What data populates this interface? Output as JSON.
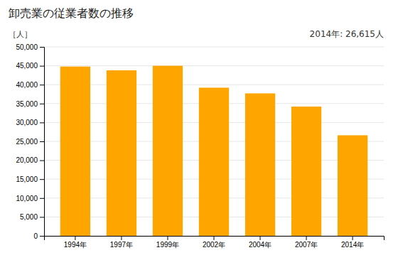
{
  "chart_data": {
    "type": "bar",
    "title": "卸売業の従業者数の推移",
    "ylabel": "［人］",
    "annotation": "2014年: 26,615人",
    "categories": [
      "1994年",
      "1997年",
      "1999年",
      "2002年",
      "2004年",
      "2007年",
      "2014年"
    ],
    "values": [
      44800,
      43800,
      45000,
      39200,
      37700,
      34200,
      26615
    ],
    "color": "#FFA500",
    "ylim": [
      0,
      50000
    ],
    "yticks": [
      0,
      {
        "value": 5000,
        "label": "5,000"
      },
      {
        "value": 10000,
        "label": "10,000"
      },
      {
        "value": 15000,
        "label": "15,000"
      },
      {
        "value": 20000,
        "label": "20,000"
      },
      {
        "value": 25000,
        "label": "25,000"
      },
      {
        "value": 30000,
        "label": "30,000"
      },
      {
        "value": 35000,
        "label": "35,000"
      },
      {
        "value": 40000,
        "label": "40,000"
      },
      {
        "value": 45000,
        "label": "45,000"
      },
      {
        "value": 50000,
        "label": "50,000"
      }
    ],
    "grid": true
  }
}
